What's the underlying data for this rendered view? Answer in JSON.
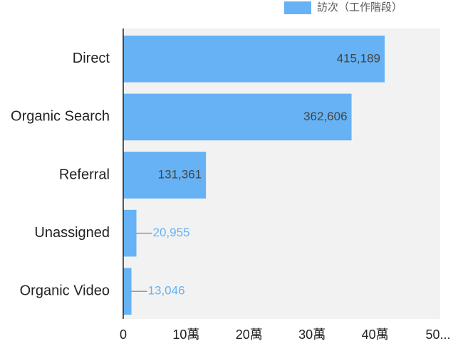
{
  "chart_data": {
    "type": "bar",
    "orientation": "horizontal",
    "legend": "訪次（工作階段）",
    "legend_position": "top-right",
    "categories": [
      "Direct",
      "Organic Search",
      "Referral",
      "Unassigned",
      "Organic Video"
    ],
    "values": [
      415189,
      362606,
      131361,
      20955,
      13046
    ],
    "value_labels": [
      "415,189",
      "362,606",
      "131,361",
      "20,955",
      "13,046"
    ],
    "color": "#66b2f5",
    "xlim": [
      0,
      500000
    ],
    "xticks": [
      0,
      {
        "value": 100000,
        "label": "10萬"
      },
      {
        "value": 200000,
        "label": "20萬"
      },
      {
        "value": 300000,
        "label": "30萬"
      },
      {
        "value": 400000,
        "label": "40萬"
      },
      {
        "value": 500000,
        "label": "50..."
      }
    ]
  }
}
